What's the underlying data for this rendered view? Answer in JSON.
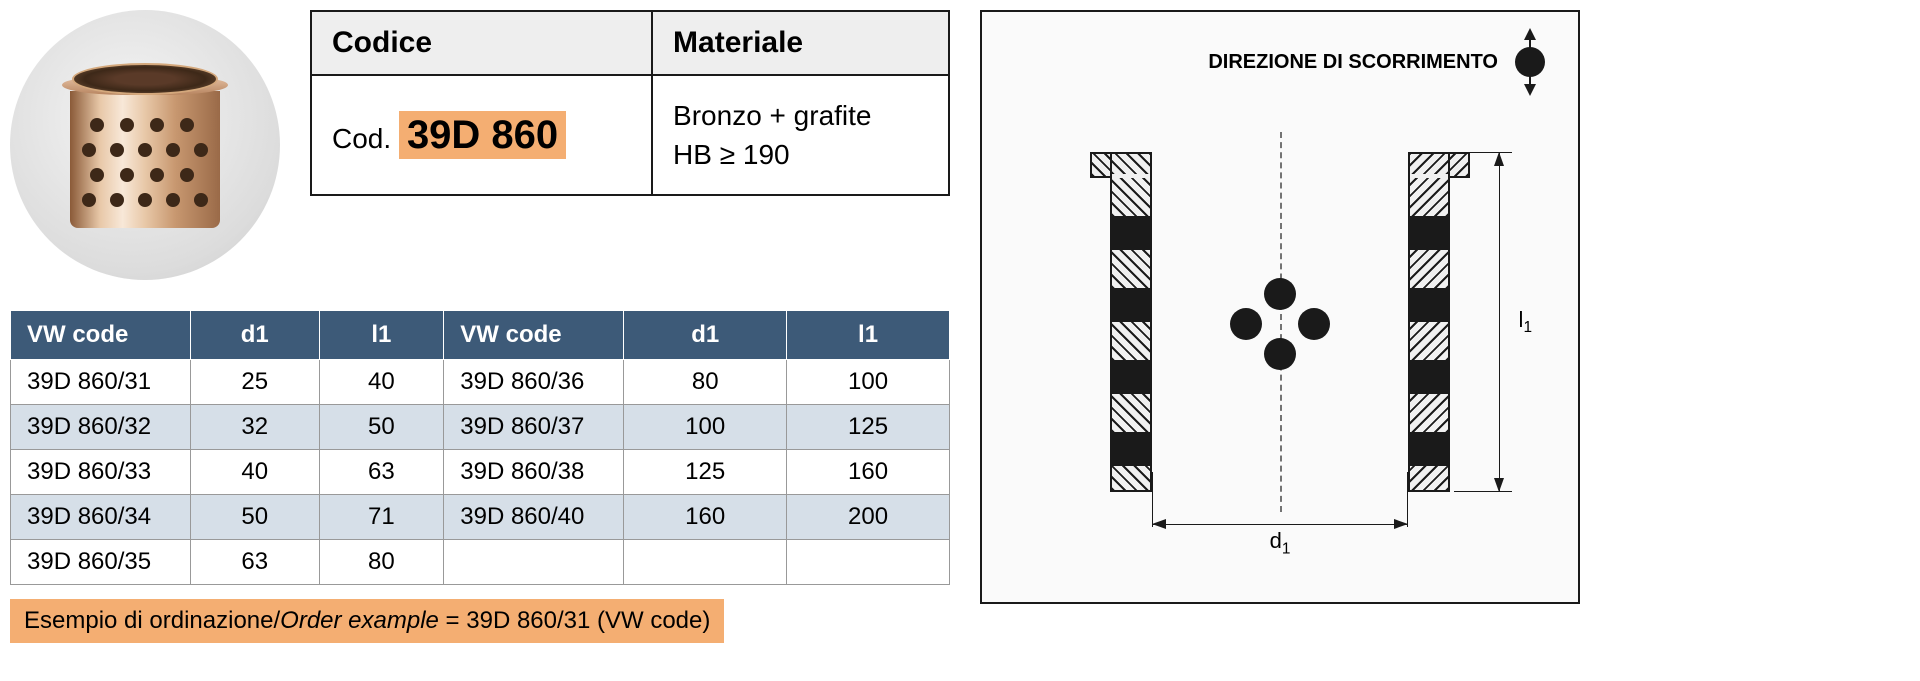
{
  "material_table": {
    "header_code": "Codice",
    "header_material": "Materiale",
    "code_prefix": "Cod.",
    "code_value": "39D 860",
    "material_line1": "Bronzo + grafite",
    "material_line2": "HB ≥ 190",
    "code_highlight_bg": "#f4ae72",
    "header_bg": "#eeeeee"
  },
  "data_table": {
    "header_bg": "#3d5a78",
    "header_color": "#ffffff",
    "alt_row_bg": "#d6dfe8",
    "columns": [
      "VW code",
      "d1",
      "l1",
      "VW code",
      "d1",
      "l1"
    ],
    "rows": [
      [
        "39D 860/31",
        "25",
        "40",
        "39D 860/36",
        "80",
        "100"
      ],
      [
        "39D 860/32",
        "32",
        "50",
        "39D 860/37",
        "100",
        "125"
      ],
      [
        "39D 860/33",
        "40",
        "63",
        "39D 860/38",
        "125",
        "160"
      ],
      [
        "39D 860/34",
        "50",
        "71",
        "39D 860/40",
        "160",
        "200"
      ],
      [
        "39D 860/35",
        "63",
        "80",
        "",
        "",
        ""
      ]
    ]
  },
  "example_note": {
    "label_it": "Esempio di ordinazione/",
    "label_en": "Order example",
    "rest": " = 39D 860/31 (VW code)",
    "bg": "#f4ae72"
  },
  "diagram": {
    "direction_label": "DIREZIONE DI SCORRIMENTO",
    "dim_l1": "l",
    "dim_l1_sub": "1",
    "dim_d1": "d",
    "dim_d1_sub": "1",
    "border_color": "#1a1a1a",
    "bg": "#fafafa"
  }
}
